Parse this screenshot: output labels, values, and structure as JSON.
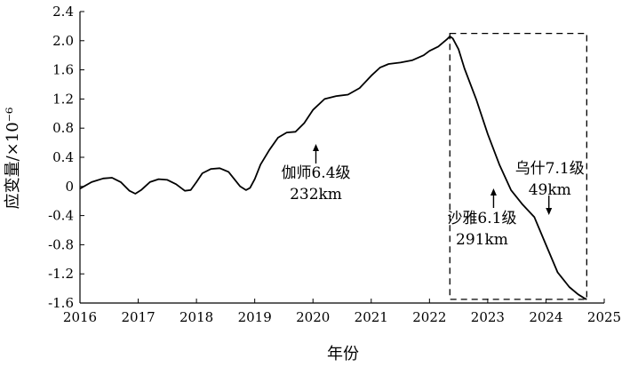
{
  "chart_data": {
    "type": "line",
    "xlabel": "年份",
    "ylabel": "应变量/×10⁻⁶",
    "xlim": [
      2016,
      2025
    ],
    "ylim": [
      -1.6,
      2.4
    ],
    "xticks": [
      "2016",
      "2017",
      "2018",
      "2019",
      "2020",
      "2021",
      "2022",
      "2023",
      "2024",
      "2025"
    ],
    "yticks": [
      "2.4",
      "2.0",
      "1.6",
      "1.2",
      "0.8",
      "0.4",
      "0",
      "-0.4",
      "-0.8",
      "-1.2",
      "-1.6"
    ],
    "grid": false,
    "series": [
      {
        "x": [
          2016.0,
          2016.2,
          2016.4,
          2016.55,
          2016.7,
          2016.85,
          2016.95,
          2017.05,
          2017.2,
          2017.35,
          2017.5,
          2017.65,
          2017.8,
          2017.9,
          2018.0,
          2018.1,
          2018.25,
          2018.4,
          2018.55,
          2018.65,
          2018.75,
          2018.85,
          2018.92,
          2019.0,
          2019.1,
          2019.25,
          2019.4,
          2019.55,
          2019.7,
          2019.85,
          2020.0,
          2020.2,
          2020.4,
          2020.6,
          2020.8,
          2021.0,
          2021.15,
          2021.3,
          2021.5,
          2021.7,
          2021.9,
          2022.0,
          2022.15,
          2022.3,
          2022.35,
          2022.4,
          2022.5,
          2022.6,
          2022.8,
          2023.0,
          2023.2,
          2023.4,
          2023.6,
          2023.8,
          2024.0,
          2024.2,
          2024.4,
          2024.55,
          2024.65,
          2024.7
        ],
        "y": [
          -0.03,
          0.06,
          0.11,
          0.12,
          0.06,
          -0.06,
          -0.1,
          -0.05,
          0.06,
          0.1,
          0.09,
          0.03,
          -0.06,
          -0.05,
          0.06,
          0.18,
          0.24,
          0.25,
          0.2,
          0.1,
          0.0,
          -0.05,
          -0.02,
          0.1,
          0.3,
          0.5,
          0.67,
          0.74,
          0.75,
          0.87,
          1.05,
          1.2,
          1.24,
          1.26,
          1.35,
          1.52,
          1.63,
          1.68,
          1.7,
          1.73,
          1.8,
          1.86,
          1.92,
          2.02,
          2.06,
          2.03,
          1.88,
          1.62,
          1.2,
          0.72,
          0.3,
          -0.05,
          -0.25,
          -0.42,
          -0.8,
          -1.18,
          -1.38,
          -1.48,
          -1.53,
          -1.55
        ]
      }
    ],
    "highlight_box": {
      "x": [
        2022.35,
        2024.7
      ],
      "y": [
        -1.55,
        2.1
      ]
    },
    "annotations": [
      {
        "lines": [
          "伽师6.4级",
          "232km"
        ],
        "x": 2020.05
      },
      {
        "lines": [
          "沙雅6.1级",
          "291km"
        ],
        "x": 2023.1
      },
      {
        "lines": [
          "乌什7.1级",
          "49km"
        ],
        "x": 2024.05
      }
    ]
  }
}
